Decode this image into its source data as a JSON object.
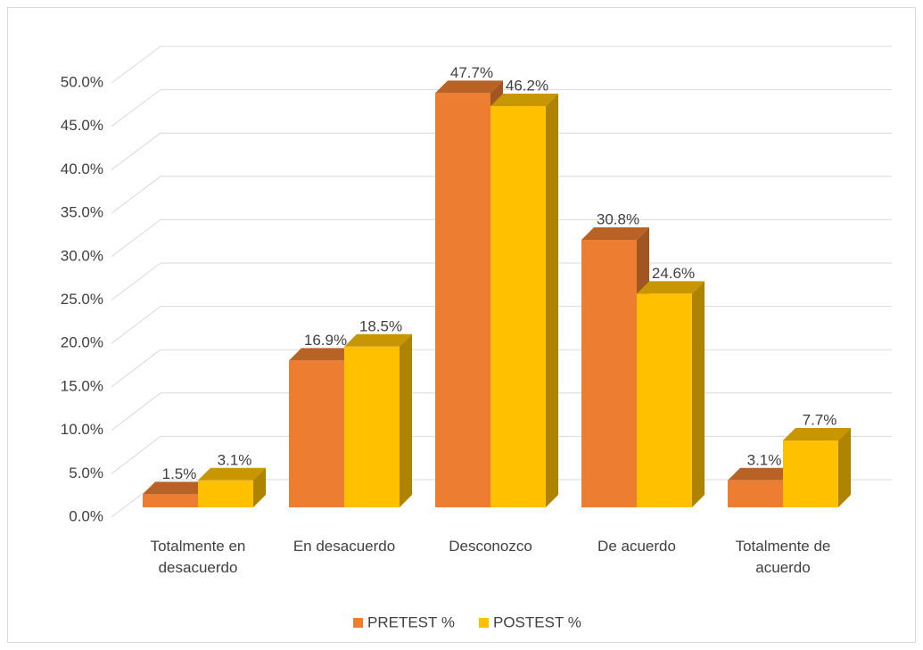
{
  "chart_data": {
    "type": "bar3d",
    "categories": [
      "Totalmente en desacuerdo",
      "En desacuerdo",
      "Desconozco",
      "De acuerdo",
      "Totalmente de acuerdo"
    ],
    "series": [
      {
        "name": "PRETEST %",
        "color": "#ED7D31",
        "values": [
          1.5,
          16.9,
          47.7,
          30.8,
          3.1
        ],
        "value_labels": [
          "1.5%",
          "16.9%",
          "47.7%",
          "30.8%",
          "3.1%"
        ]
      },
      {
        "name": "POSTEST %",
        "color": "#FFC000",
        "values": [
          3.1,
          18.5,
          46.2,
          24.6,
          7.7
        ],
        "value_labels": [
          "3.1%",
          "18.5%",
          "46.2%",
          "24.6%",
          "7.7%"
        ]
      }
    ],
    "ylim": [
      0,
      50
    ],
    "yticks": [
      {
        "value": 0,
        "label": "0.0%"
      },
      {
        "value": 5,
        "label": "5.0%"
      },
      {
        "value": 10,
        "label": "10.0%"
      },
      {
        "value": 15,
        "label": "15.0%"
      },
      {
        "value": 20,
        "label": "20.0%"
      },
      {
        "value": 25,
        "label": "25.0%"
      },
      {
        "value": 30,
        "label": "30.0%"
      },
      {
        "value": 35,
        "label": "35.0%"
      },
      {
        "value": 40,
        "label": "40.0%"
      },
      {
        "value": 45,
        "label": "45.0%"
      },
      {
        "value": 50,
        "label": "50.0%"
      }
    ],
    "grid": true,
    "legend": "bottom"
  }
}
